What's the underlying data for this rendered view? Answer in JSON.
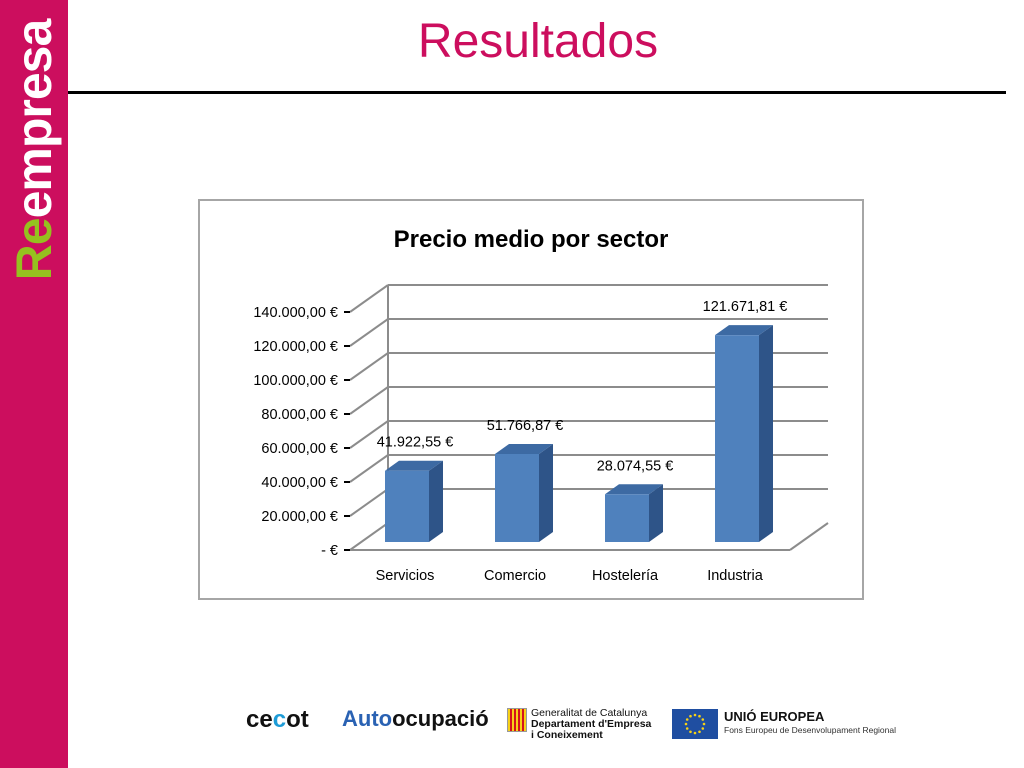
{
  "slide": {
    "title": "Resultados",
    "sidebar_logo": {
      "r": "R",
      "e": "e",
      "rest": "empresa"
    }
  },
  "chart_data": {
    "type": "bar",
    "title": "Precio medio por sector",
    "categories": [
      "Servicios",
      "Comercio",
      "Hostelería",
      "Industria"
    ],
    "values": [
      41922.55,
      51766.87,
      28074.55,
      121671.81
    ],
    "value_labels": [
      "41.922,55 €",
      "51.766,87 €",
      "28.074,55 €",
      "121.671,81 €"
    ],
    "ytick_values": [
      0,
      20000,
      40000,
      60000,
      80000,
      100000,
      120000,
      140000
    ],
    "ytick_labels": [
      "-   €",
      "20.000,00 €",
      "40.000,00 €",
      "60.000,00 €",
      "80.000,00 €",
      "100.000,00 €",
      "120.000,00 €",
      "140.000,00 €"
    ],
    "ylim": [
      0,
      140000
    ],
    "grid": true,
    "style": "3d-column",
    "colors": {
      "bar_front": "#4f81bd",
      "bar_side": "#2e5488",
      "bar_top": "#3d6aa3",
      "grid": "#8c8c8c"
    }
  },
  "footer": {
    "cecot": {
      "a": "ce",
      "b": "c",
      "c": "ot"
    },
    "autoocupacio": {
      "a": "Auto",
      "b": "ocupació"
    },
    "gencat": {
      "line1": "Generalitat de Catalunya",
      "line2": "Departament d'Empresa",
      "line3": "i Coneixement"
    },
    "eu": {
      "title": "UNIÓ EUROPEA",
      "subtitle": "Fons Europeu de Desenvolupament Regional"
    }
  }
}
